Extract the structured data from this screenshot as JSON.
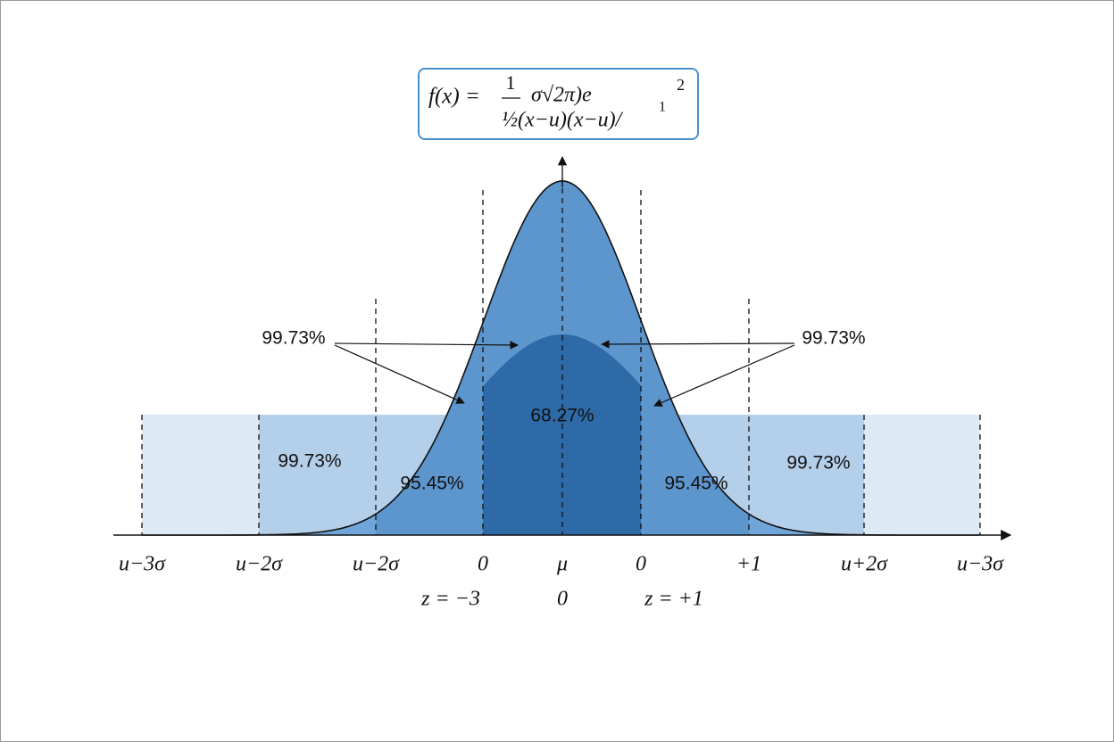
{
  "formula": {
    "lhs": "f(x) =",
    "numerator": "1",
    "middle": "σ√2π)e",
    "denominator": "½(x−u)(x−u)/",
    "superscript_small": "1",
    "superscript": "2"
  },
  "annotations": [
    "99.73%",
    "99.73%",
    "68.27%",
    "99.73%",
    "95.45%",
    "95.45%",
    "99.73%"
  ],
  "axis_labels": [
    "u−3σ",
    "u−2σ",
    "u−2σ",
    "0",
    "μ",
    "0",
    "+1",
    "u+2σ",
    "u−3σ"
  ],
  "z_labels": [
    "z = −3",
    "0",
    "z = +1"
  ]
}
